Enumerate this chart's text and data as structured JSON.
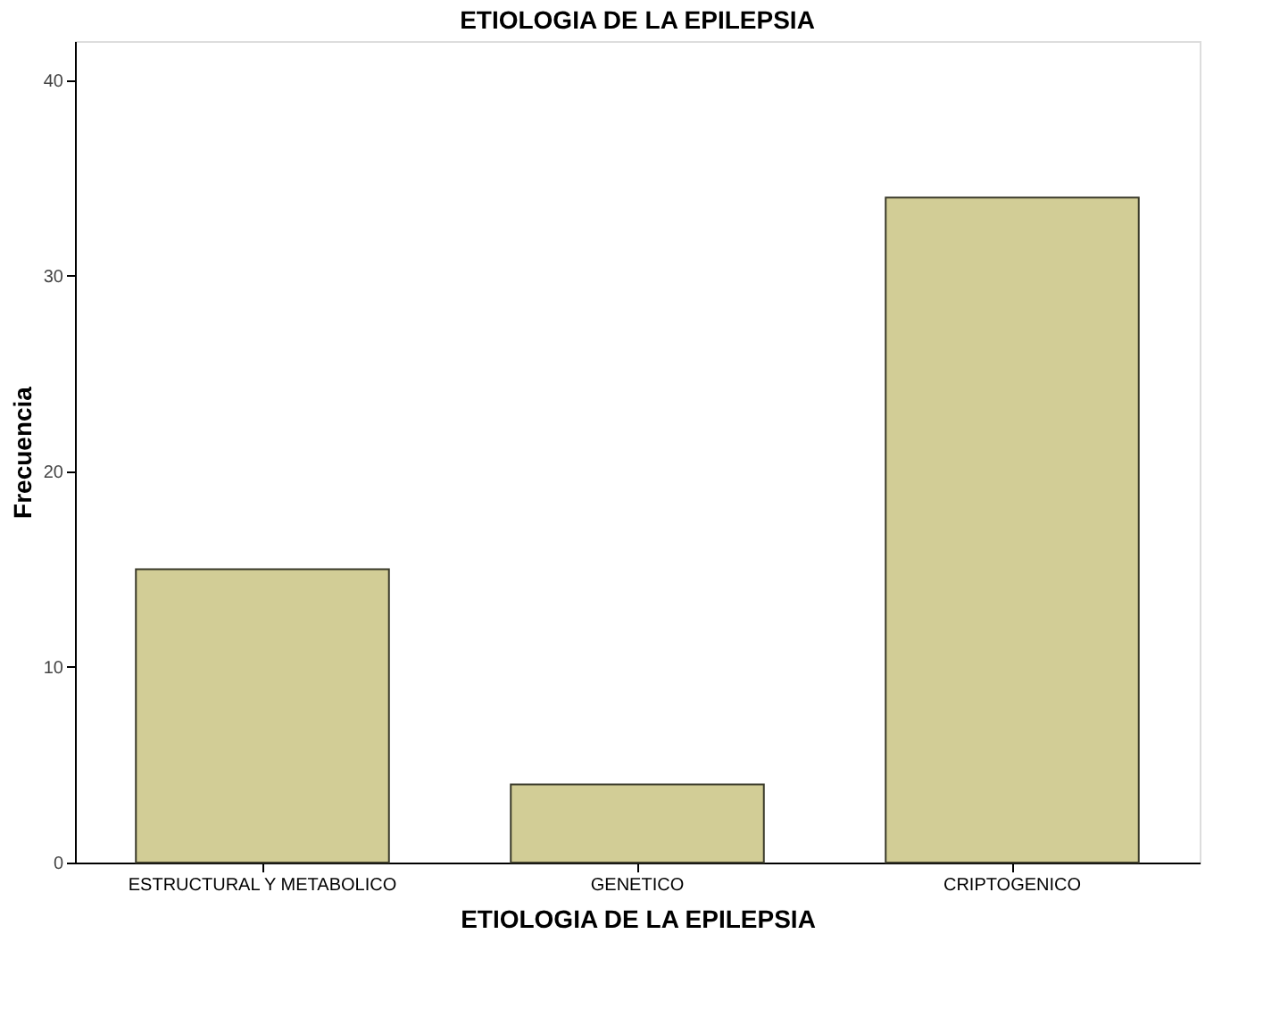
{
  "chart_data": {
    "type": "bar",
    "title": "ETIOLOGIA DE LA EPILEPSIA",
    "xlabel": "ETIOLOGIA DE LA EPILEPSIA",
    "ylabel": "Frecuencia",
    "categories": [
      "ESTRUCTURAL Y METABOLICO",
      "GENETICO",
      "CRIPTOGENICO"
    ],
    "values": [
      15,
      4,
      34
    ],
    "color": "#d2cd96",
    "ylim": [
      0,
      42
    ],
    "yticks": [
      0,
      10,
      20,
      30,
      40
    ],
    "grid": false
  }
}
